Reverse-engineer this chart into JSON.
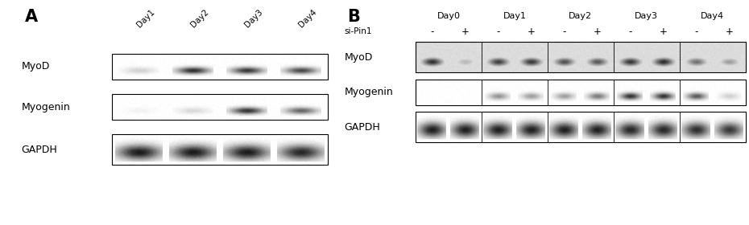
{
  "panel_A_label": "A",
  "panel_B_label": "B",
  "panel_A_col_labels": [
    "Day1",
    "Day2",
    "Day3",
    "Day4"
  ],
  "panel_B_col_labels": [
    "Day0",
    "Day1",
    "Day2",
    "Day3",
    "Day4"
  ],
  "si_pin1_label": "si-Pin1",
  "si_pin1_signs": [
    "-",
    "+",
    "-",
    "+",
    "-",
    "+",
    "-",
    "+",
    "-",
    "+"
  ],
  "bg_color": "#ffffff",
  "box_edge_color": "#000000",
  "text_color": "#000000",
  "panel_A_rows": [
    {
      "label": "MyoD",
      "bands": [
        0.18,
        0.82,
        0.78,
        0.72
      ]
    },
    {
      "label": "Myogenin",
      "bands": [
        0.05,
        0.15,
        0.8,
        0.6
      ]
    },
    {
      "label": "GAPDH",
      "bands": [
        0.9,
        0.9,
        0.9,
        0.85
      ]
    }
  ],
  "panel_B_rows": [
    {
      "label": "MyoD",
      "bands": [
        0.82,
        0.28,
        0.75,
        0.78,
        0.68,
        0.65,
        0.78,
        0.82,
        0.55,
        0.38
      ],
      "bg_gray": 0.55
    },
    {
      "label": "Myogenin",
      "bands": [
        0.0,
        0.0,
        0.42,
        0.38,
        0.38,
        0.52,
        0.8,
        0.8,
        0.65,
        0.18
      ],
      "bg_gray": 0.0
    },
    {
      "label": "GAPDH",
      "bands": [
        0.88,
        0.88,
        0.88,
        0.88,
        0.88,
        0.88,
        0.85,
        0.85,
        0.82,
        0.78
      ],
      "bg_gray": 0.0
    }
  ]
}
